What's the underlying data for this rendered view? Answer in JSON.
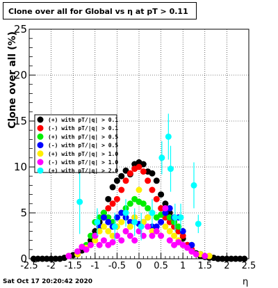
{
  "title": "Clone  over all for Global vs   η at pT > 0.11",
  "footer": "Sat Oct 17 20:20:42 2020",
  "chart_data": {
    "type": "scatter",
    "xlabel": "η",
    "ylabel": "Clone  over all (%)",
    "xlim": [
      -2.5,
      2.5
    ],
    "ylim": [
      0,
      25
    ],
    "x_ticks": [
      "-2.5",
      "-2",
      "-1.5",
      "-1",
      "-0.5",
      "0",
      "0.5",
      "1",
      "1.5",
      "2",
      "2.5"
    ],
    "y_ticks": [
      "0",
      "5",
      "10",
      "15",
      "20",
      "25"
    ],
    "grid": true,
    "legend_position": "left-middle",
    "series": [
      {
        "name": "(+) with pT/|q| > 0.1",
        "color": "#000000",
        "x": [
          -2.4,
          -2.3,
          -2.2,
          -2.1,
          -2.0,
          -1.9,
          -1.8,
          -1.7,
          -1.6,
          -1.5,
          -1.4,
          -1.3,
          -1.2,
          -1.1,
          -1.0,
          -0.9,
          -0.8,
          -0.7,
          -0.6,
          -0.5,
          -0.4,
          -0.3,
          -0.2,
          -0.1,
          0.0,
          0.1,
          0.2,
          0.3,
          0.4,
          0.5,
          0.6,
          0.7,
          0.8,
          0.9,
          1.0,
          1.1,
          1.2,
          1.3,
          1.4,
          1.5,
          1.6,
          1.7,
          1.8,
          1.9,
          2.0,
          2.1,
          2.2,
          2.3,
          2.4
        ],
        "y": [
          0,
          0,
          0,
          0,
          0,
          0,
          0,
          0.1,
          0.3,
          0.4,
          0.5,
          0.9,
          1.3,
          2.0,
          3.0,
          4.0,
          5.0,
          6.5,
          7.8,
          8.5,
          9.0,
          9.6,
          9.2,
          10.3,
          10.5,
          10.3,
          9.5,
          9.3,
          8.5,
          7.0,
          6.0,
          5.0,
          4.0,
          3.0,
          2.2,
          1.5,
          1.0,
          0.6,
          0.3,
          0.2,
          0.1,
          0.1,
          0,
          0,
          0,
          0,
          0,
          0,
          0
        ]
      },
      {
        "name": "(-) with pT/|q| > 0.1",
        "color": "#ff0000",
        "x": [
          -1.6,
          -1.4,
          -1.2,
          -1.0,
          -0.9,
          -0.8,
          -0.7,
          -0.6,
          -0.5,
          -0.4,
          -0.3,
          -0.2,
          -0.1,
          0.0,
          0.1,
          0.2,
          0.3,
          0.4,
          0.5,
          0.6,
          0.7,
          0.8,
          0.9,
          1.0,
          1.1,
          1.2,
          1.4,
          1.6
        ],
        "y": [
          0.3,
          0.5,
          1.2,
          2.5,
          3.5,
          4.5,
          5.5,
          6.0,
          6.5,
          7.5,
          8.5,
          9.3,
          9.8,
          10.0,
          9.5,
          8.5,
          7.5,
          6.5,
          5.5,
          4.5,
          4.0,
          3.5,
          3.0,
          2.5,
          1.5,
          1.0,
          0.5,
          0.3
        ]
      },
      {
        "name": "(+) with pT/|q| > 0.5",
        "color": "#00ee00",
        "x": [
          -1.4,
          -1.2,
          -1.1,
          -1.0,
          -0.9,
          -0.8,
          -0.7,
          -0.6,
          -0.5,
          -0.4,
          -0.3,
          -0.2,
          -0.1,
          0.0,
          0.1,
          0.2,
          0.3,
          0.4,
          0.5,
          0.6,
          0.7,
          0.8,
          0.9,
          1.0,
          1.2,
          1.4
        ],
        "y": [
          0.8,
          1.5,
          2.5,
          4.0,
          4.5,
          5.0,
          4.5,
          4.0,
          4.5,
          5.0,
          5.5,
          6.0,
          6.5,
          6.2,
          6.0,
          5.5,
          5.0,
          4.5,
          4.8,
          5.0,
          4.5,
          4.0,
          3.5,
          3.0,
          1.5,
          0.5
        ]
      },
      {
        "name": "(-) with pT/|q| > 0.5",
        "color": "#0000ff",
        "x": [
          -1.4,
          -1.2,
          -1.0,
          -0.9,
          -0.8,
          -0.7,
          -0.6,
          -0.5,
          -0.4,
          -0.3,
          -0.2,
          -0.1,
          0.0,
          0.1,
          0.2,
          0.3,
          0.4,
          0.5,
          0.6,
          0.7,
          0.8,
          0.9,
          1.0,
          1.2,
          1.4
        ],
        "y": [
          0.5,
          1.2,
          2.5,
          3.5,
          4.5,
          4.0,
          3.5,
          4.5,
          5.0,
          4.5,
          4.0,
          4.5,
          3.8,
          4.0,
          4.5,
          3.5,
          3.5,
          4.0,
          5.0,
          5.5,
          4.5,
          4.5,
          3.0,
          1.5,
          0.5
        ]
      },
      {
        "name": "(+) with pT/|q| > 1.0",
        "color": "#ffee00",
        "x": [
          -1.4,
          -1.2,
          -1.0,
          -0.9,
          -0.8,
          -0.7,
          -0.6,
          -0.5,
          -0.4,
          -0.3,
          -0.2,
          -0.1,
          0.0,
          0.1,
          0.2,
          0.3,
          0.4,
          0.5,
          0.6,
          0.7,
          0.8,
          0.9,
          1.0,
          1.2,
          1.4,
          1.6
        ],
        "y": [
          0.5,
          1.2,
          2.0,
          3.0,
          3.5,
          3.0,
          2.5,
          3.5,
          4.0,
          3.0,
          3.5,
          4.5,
          7.5,
          4.0,
          4.5,
          3.0,
          3.0,
          2.5,
          3.5,
          3.0,
          2.5,
          2.0,
          1.5,
          0.8,
          0.5,
          0.3
        ]
      },
      {
        "name": "(-) with pT/|q| > 1.0",
        "color": "#ff00ff",
        "x": [
          -1.6,
          -1.4,
          -1.3,
          -1.2,
          -1.1,
          -1.0,
          -0.9,
          -0.8,
          -0.7,
          -0.6,
          -0.5,
          -0.4,
          -0.3,
          -0.2,
          -0.1,
          0.0,
          0.1,
          0.2,
          0.3,
          0.4,
          0.5,
          0.6,
          0.7,
          0.8,
          0.9,
          1.0,
          1.1,
          1.2,
          1.3,
          1.5
        ],
        "y": [
          0.3,
          0.8,
          1.3,
          1.0,
          1.5,
          2.5,
          1.5,
          2.0,
          1.5,
          1.8,
          2.5,
          2.0,
          3.0,
          2.5,
          2.0,
          3.0,
          2.5,
          3.5,
          2.5,
          3.0,
          2.5,
          5.5,
          2.0,
          1.5,
          1.8,
          1.5,
          1.2,
          0.8,
          0.5,
          0.3
        ]
      },
      {
        "name": "(+) with pT/|q| > 2.0",
        "color": "#00ffff",
        "x": [
          -1.35,
          -0.95,
          -0.55,
          -0.3,
          -0.1,
          0.05,
          0.3,
          0.52,
          0.67,
          0.72,
          0.82,
          0.95,
          1.25,
          1.35
        ],
        "y": [
          6.2,
          4.0,
          3.5,
          5.0,
          4.0,
          3.5,
          5.0,
          11.0,
          13.3,
          9.8,
          4.5,
          4.5,
          8.0,
          3.8
        ],
        "yerr": [
          3.5,
          1.5,
          1.5,
          1.5,
          1.5,
          1.5,
          1.5,
          1.8,
          2.5,
          2.5,
          1.5,
          1.5,
          2.5,
          1.0
        ]
      }
    ]
  }
}
